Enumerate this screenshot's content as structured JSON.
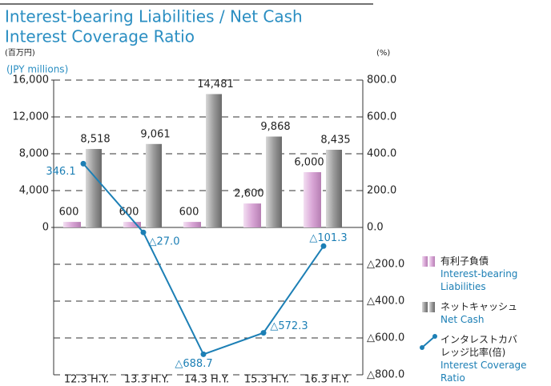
{
  "chart_data": {
    "type": "bar_line",
    "title": "Interest-bearing Liabilities / Net Cash",
    "subtitle": "Interest Coverage Ratio",
    "y_label": "(百万円)",
    "y_label_en": "(JPY millions)",
    "y2_label": "(%)",
    "categories": [
      "12.3 H.Y.",
      "13.3 H.Y.",
      "14.3 H.Y.",
      "15.3 H.Y.",
      "16.3 H.Y."
    ],
    "series": [
      {
        "name": "有利子負債",
        "name_en": "Interest-bearing Liabilities",
        "type": "bar",
        "color": "#d9a6d6",
        "values": [
          600,
          600,
          600,
          2600,
          6000
        ],
        "value_labels": [
          "600",
          "600",
          "600",
          "2,600",
          "6,000"
        ]
      },
      {
        "name": "ネットキャッシュ",
        "name_en": "Net Cash",
        "type": "bar",
        "color": "#9a9a9a",
        "values": [
          8518,
          9061,
          14481,
          9868,
          8435
        ],
        "value_labels": [
          "8,518",
          "9,061",
          "14,481",
          "9,868",
          "8,435"
        ]
      },
      {
        "name": "インタレストカバレッジ比率(倍)",
        "name_en": "Interest Coverage Ratio",
        "type": "line",
        "axis": "y2",
        "color": "#1c7fb5",
        "values": [
          346.1,
          -27.0,
          -688.7,
          -572.3,
          -101.3
        ],
        "value_labels": [
          "346.1",
          "△27.0",
          "△688.7",
          "△572.3",
          "△101.3"
        ]
      }
    ],
    "ylim": [
      -16000,
      16000
    ],
    "yticks": [
      {
        "value": 0,
        "label": "0"
      },
      {
        "value": 4000,
        "label": "4,000"
      },
      {
        "value": 8000,
        "label": "8,000"
      },
      {
        "value": 12000,
        "label": "12,000"
      },
      {
        "value": 16000,
        "label": "16,000"
      }
    ],
    "y2lim": [
      -800,
      800
    ],
    "y2ticks": [
      {
        "value": -800,
        "label": "△800.0"
      },
      {
        "value": -600,
        "label": "△600.0"
      },
      {
        "value": -400,
        "label": "△400.0"
      },
      {
        "value": -200,
        "label": "△200.0"
      },
      {
        "value": 0,
        "label": "0.0"
      },
      {
        "value": 200,
        "label": "200.0"
      },
      {
        "value": 400,
        "label": "400.0"
      },
      {
        "value": 600,
        "label": "600.0"
      },
      {
        "value": 800,
        "label": "800.0"
      }
    ],
    "grid": true
  }
}
